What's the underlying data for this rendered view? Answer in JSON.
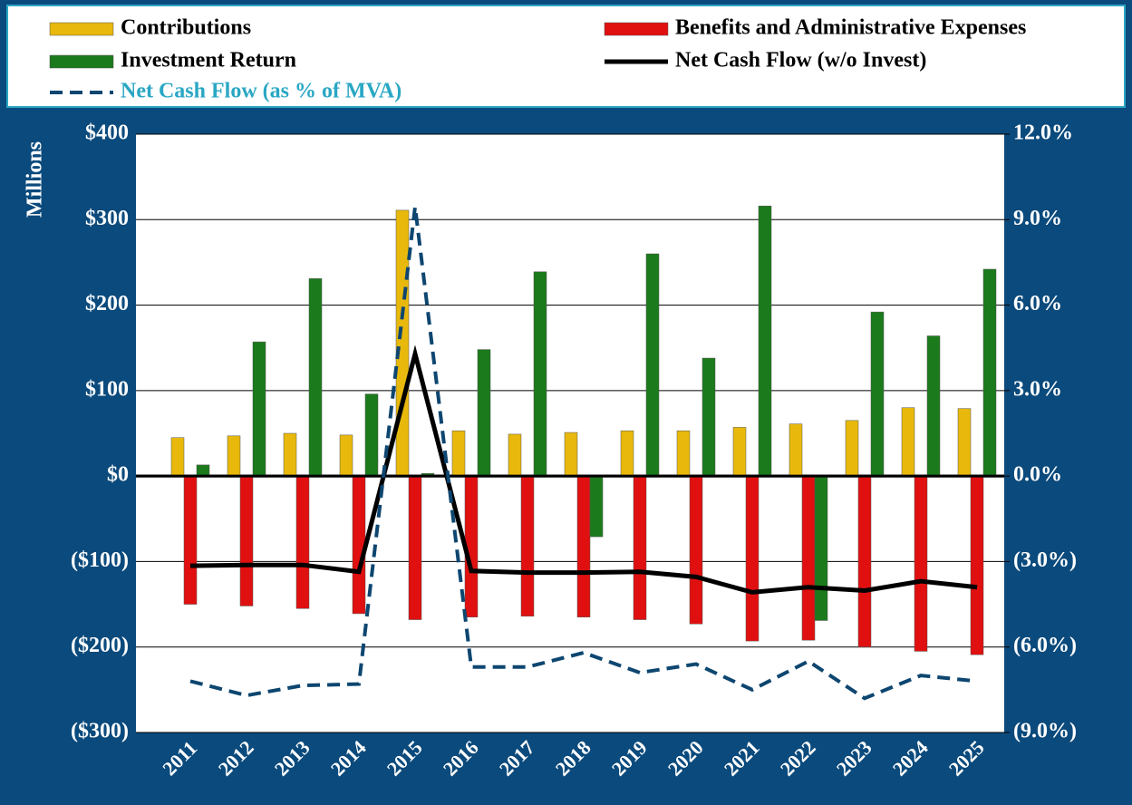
{
  "chart_data": {
    "type": "bar",
    "y_axis_label": "Millions",
    "categories": [
      "2011",
      "2012",
      "2013",
      "2014",
      "2015",
      "2016",
      "2017",
      "2018",
      "2019",
      "2020",
      "2021",
      "2022",
      "2023",
      "2024",
      "2025"
    ],
    "series": [
      {
        "name": "Contributions",
        "type": "bar",
        "color": "#e8b90c",
        "values": [
          45,
          47,
          50,
          48,
          311,
          53,
          49,
          51,
          53,
          53,
          57,
          61,
          65,
          80,
          79
        ]
      },
      {
        "name": "Benefits and Administrative Expenses",
        "type": "bar",
        "color": "#e01010",
        "values": [
          -150,
          -152,
          -155,
          -161,
          -168,
          -165,
          -164,
          -165,
          -168,
          -173,
          -193,
          -192,
          -200,
          -205,
          -209
        ]
      },
      {
        "name": "Investment Return",
        "type": "bar",
        "color": "#1b7a1b",
        "values": [
          13,
          157,
          231,
          96,
          3,
          148,
          239,
          -71,
          260,
          138,
          316,
          -169,
          192,
          164,
          242
        ]
      },
      {
        "name": "Net Cash Flow (w/o Invest)",
        "type": "line",
        "color": "#000000",
        "values": [
          -105,
          -104,
          -104,
          -112,
          143,
          -111,
          -113,
          -113,
          -112,
          -118,
          -136,
          -130,
          -134,
          -123,
          -130
        ]
      },
      {
        "name": "Net Cash Flow (as % of MVA)",
        "type": "line",
        "axis": "y2",
        "dashed": true,
        "color": "#0d4670",
        "label_color": "#2aa7c4",
        "values": [
          -7.2,
          -7.7,
          -7.35,
          -7.3,
          9.45,
          -6.7,
          -6.7,
          -6.2,
          -6.9,
          -6.6,
          -7.5,
          -6.5,
          -7.8,
          -7.0,
          -7.2
        ]
      }
    ],
    "ylim": [
      -300,
      400
    ],
    "yticks": [
      {
        "value": -300,
        "label": "($300)"
      },
      {
        "value": -200,
        "label": "($200)"
      },
      {
        "value": -100,
        "label": "($100)"
      },
      {
        "value": 0,
        "label": "$0"
      },
      {
        "value": 100,
        "label": "$100"
      },
      {
        "value": 200,
        "label": "$200"
      },
      {
        "value": 300,
        "label": "$300"
      },
      {
        "value": 400,
        "label": "$400"
      }
    ],
    "y2lim": [
      -9,
      12
    ],
    "y2ticks": [
      {
        "value": -9,
        "label": "(9.0%)"
      },
      {
        "value": -6,
        "label": "(6.0%)"
      },
      {
        "value": -3,
        "label": "(3.0%)"
      },
      {
        "value": 0,
        "label": "0.0%"
      },
      {
        "value": 3,
        "label": "3.0%"
      },
      {
        "value": 6,
        "label": "6.0%"
      },
      {
        "value": 9,
        "label": "9.0%"
      },
      {
        "value": 12,
        "label": "12.0%"
      }
    ],
    "grid": true,
    "legend": "top"
  }
}
